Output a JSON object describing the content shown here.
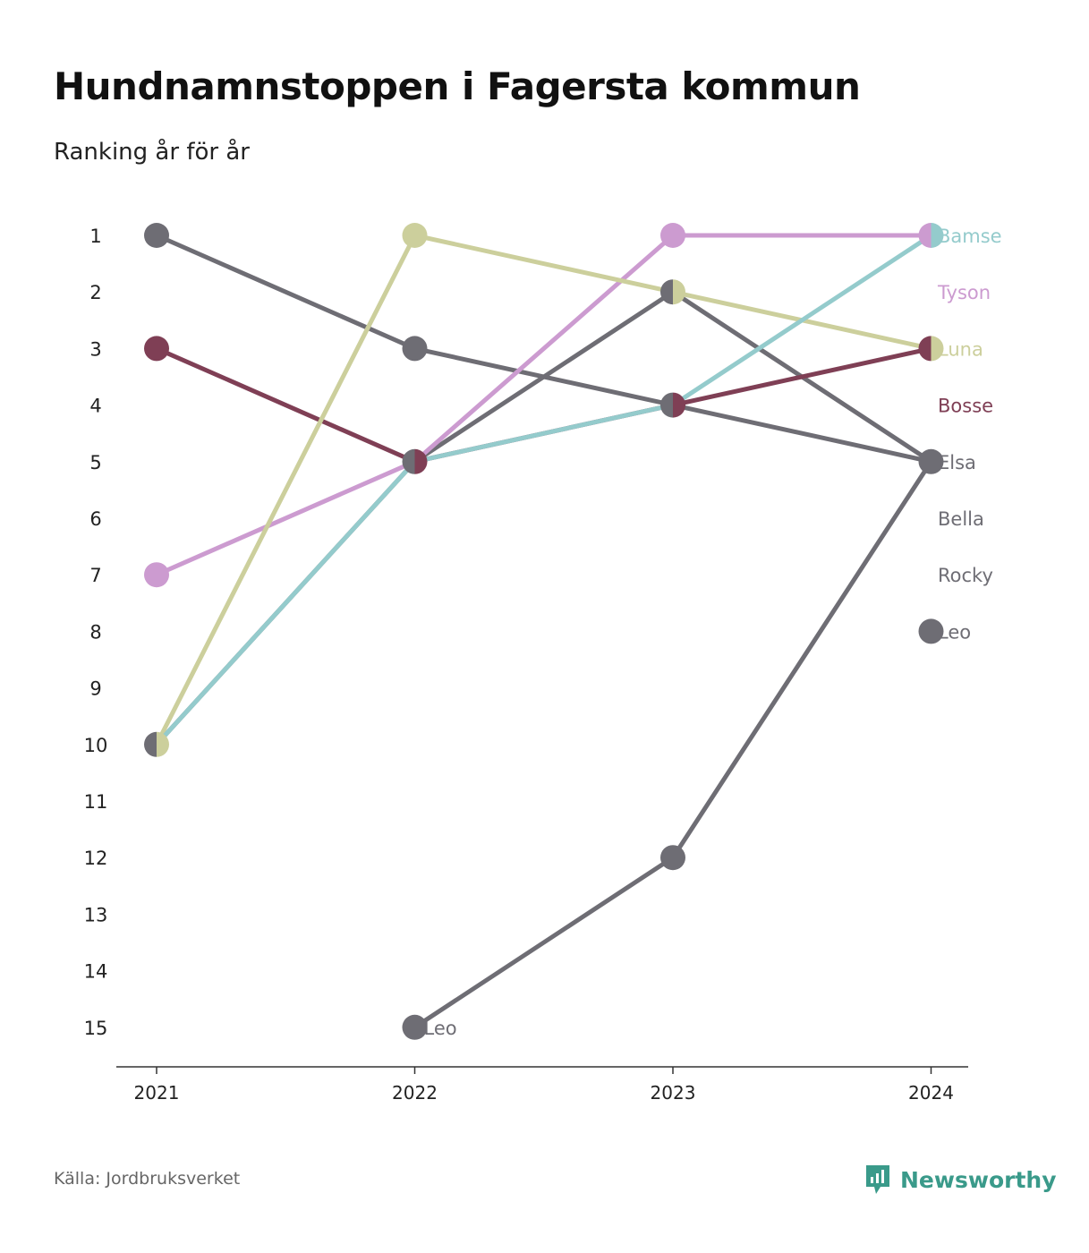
{
  "title": "Hundnamnstoppen i Fagersta kommun",
  "subtitle": "Ranking år för år",
  "source": "Källa: Jordbruksverket",
  "brand": {
    "name": "Newsworthy",
    "icon": "newsworthy-logo-icon",
    "color": "#3a9a8a"
  },
  "chart_data": {
    "type": "line",
    "title": "Hundnamnstoppen i Fagersta kommun",
    "subtitle": "Ranking år för år",
    "x": [
      "2021",
      "2022",
      "2023",
      "2024"
    ],
    "y_ticks": [
      "1",
      "2",
      "3",
      "4",
      "5",
      "6",
      "7",
      "8",
      "9",
      "10",
      "11",
      "12",
      "13",
      "14",
      "15"
    ],
    "ylim": [
      1,
      15
    ],
    "y_reversed": true,
    "grid": false,
    "legend": "end-labels-right",
    "series": [
      {
        "name": "Bella",
        "color": "#6e6d74",
        "values": [
          1,
          3,
          4,
          5
        ]
      },
      {
        "name": "Rocky",
        "color": "#6e6d74",
        "values": [
          10,
          5,
          2,
          5
        ]
      },
      {
        "name": "Bosse",
        "color": "#7f3f55",
        "values": [
          3,
          5,
          4,
          3
        ]
      },
      {
        "name": "Tyson",
        "color": "#cc9bd0",
        "values": [
          7,
          5,
          1,
          1
        ]
      },
      {
        "name": "Luna",
        "color": "#cccf9c",
        "values": [
          10,
          1,
          2,
          3
        ]
      },
      {
        "name": "Bamse",
        "color": "#94cbcc",
        "values": [
          10,
          5,
          4,
          1
        ]
      },
      {
        "name": "Elsa",
        "color": "#6e6d74",
        "values": [
          null,
          15,
          12,
          5
        ]
      },
      {
        "name": "Leo",
        "color": "#6e6d74",
        "values": [
          null,
          null,
          null,
          8
        ]
      }
    ],
    "annotations": [
      {
        "text": "Leo",
        "x": "2022",
        "y": 15
      }
    ]
  }
}
